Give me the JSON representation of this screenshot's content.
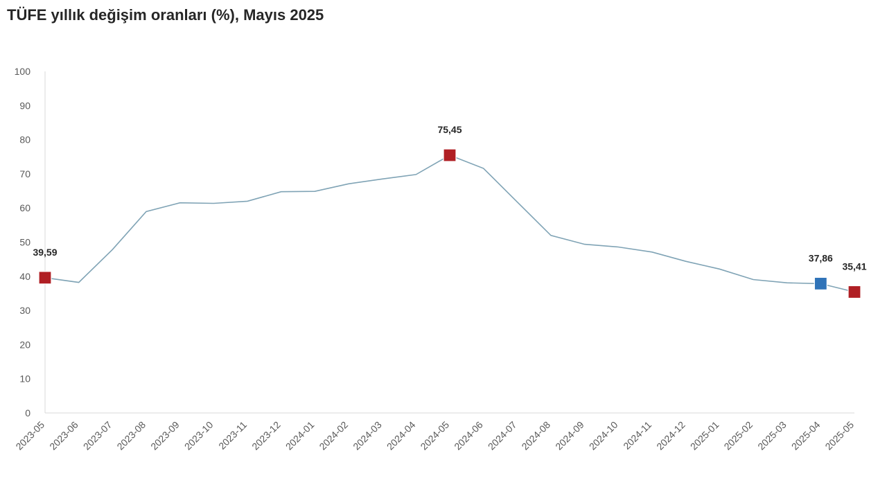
{
  "title": "TÜFE yıllık değişim oranları (%), Mayıs 2025",
  "colors": {
    "line": "#7fa3b5",
    "marker_highlight": "#b01f24",
    "marker_latest_prev": "#2f73b8",
    "axis": "#d9d9d9"
  },
  "chart_data": {
    "type": "line",
    "title": "TÜFE yıllık değişim oranları (%), Mayıs 2025",
    "xlabel": "",
    "ylabel": "",
    "ylim": [
      0,
      100
    ],
    "yticks": [
      0,
      10,
      20,
      30,
      40,
      50,
      60,
      70,
      80,
      90,
      100
    ],
    "grid": false,
    "categories": [
      "2023-05",
      "2023-06",
      "2023-07",
      "2023-08",
      "2023-09",
      "2023-10",
      "2023-11",
      "2023-12",
      "2024-01",
      "2024-02",
      "2024-03",
      "2024-04",
      "2024-05",
      "2024-06",
      "2024-07",
      "2024-08",
      "2024-09",
      "2024-10",
      "2024-11",
      "2024-12",
      "2025-01",
      "2025-02",
      "2025-03",
      "2025-04",
      "2025-05"
    ],
    "series": [
      {
        "values": [
          39.59,
          38.21,
          47.83,
          58.94,
          61.53,
          61.36,
          61.98,
          64.77,
          64.86,
          67.07,
          68.5,
          69.8,
          75.45,
          71.6,
          61.78,
          51.97,
          49.38,
          48.58,
          47.09,
          44.38,
          42.12,
          39.05,
          38.1,
          37.86,
          35.41
        ]
      }
    ],
    "annotations": [
      {
        "category": "2023-05",
        "label": "39,59",
        "marker": "red"
      },
      {
        "category": "2024-05",
        "label": "75,45",
        "marker": "red"
      },
      {
        "category": "2025-04",
        "label": "37,86",
        "marker": "blue"
      },
      {
        "category": "2025-05",
        "label": "35,41",
        "marker": "red"
      }
    ]
  }
}
